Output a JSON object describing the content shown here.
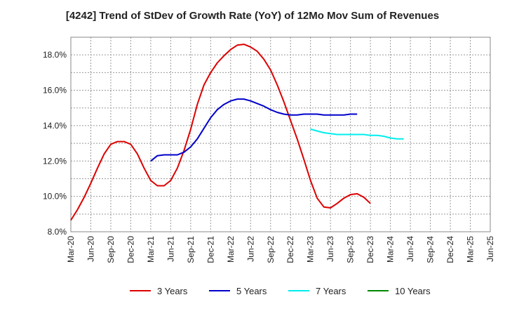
{
  "chart_data": {
    "type": "line",
    "title": "[4242]  Trend of StDev of Growth Rate (YoY) of 12Mo Mov Sum of Revenues",
    "xlabel": "",
    "ylabel": "",
    "ylim": [
      8.0,
      19.0
    ],
    "y_ticks": [
      8.0,
      10.0,
      12.0,
      14.0,
      16.0,
      18.0
    ],
    "y_tick_labels": [
      "8.0%",
      "10.0%",
      "12.0%",
      "14.0%",
      "16.0%",
      "18.0%"
    ],
    "x_tick_labels": [
      "Mar-20",
      "Jun-20",
      "Sep-20",
      "Dec-20",
      "Mar-21",
      "Jun-21",
      "Sep-21",
      "Dec-21",
      "Mar-22",
      "Jun-22",
      "Sep-22",
      "Dec-22",
      "Mar-23",
      "Jun-23",
      "Sep-23",
      "Dec-23",
      "Mar-24",
      "Jun-24",
      "Sep-24",
      "Dec-24",
      "Mar-25",
      "Jun-25"
    ],
    "grid": true,
    "legend_position": "bottom",
    "series": [
      {
        "name": "3 Years",
        "color": "#dd0000",
        "start_index": 0,
        "values": [
          8.65,
          9.25,
          9.95,
          10.75,
          11.6,
          12.4,
          12.95,
          13.1,
          13.1,
          12.95,
          12.4,
          11.6,
          10.9,
          10.6,
          10.6,
          10.9,
          11.6,
          12.6,
          13.8,
          15.2,
          16.3,
          17.0,
          17.55,
          17.95,
          18.3,
          18.55,
          18.6,
          18.45,
          18.2,
          17.75,
          17.15,
          16.3,
          15.35,
          14.3,
          13.25,
          12.1,
          10.9,
          9.9,
          9.4,
          9.35,
          9.6,
          9.9,
          10.1,
          10.15,
          9.95,
          9.6
        ]
      },
      {
        "name": "5 Years",
        "color": "#0000cc",
        "start_index": 12,
        "values": [
          12.0,
          12.3,
          12.35,
          12.35,
          12.35,
          12.5,
          12.8,
          13.25,
          13.85,
          14.45,
          14.9,
          15.2,
          15.4,
          15.5,
          15.5,
          15.4,
          15.25,
          15.1,
          14.9,
          14.75,
          14.65,
          14.6,
          14.6,
          14.65,
          14.65,
          14.65,
          14.6,
          14.6,
          14.6,
          14.6,
          14.65,
          14.65
        ]
      },
      {
        "name": "7 Years",
        "color": "#00eeee",
        "start_index": 36,
        "values": [
          13.8,
          13.7,
          13.6,
          13.55,
          13.5,
          13.5,
          13.5,
          13.5,
          13.5,
          13.45,
          13.45,
          13.4,
          13.3,
          13.25,
          13.25
        ]
      },
      {
        "name": "10 Years",
        "color": "#008800",
        "start_index": 0,
        "values": []
      }
    ]
  }
}
